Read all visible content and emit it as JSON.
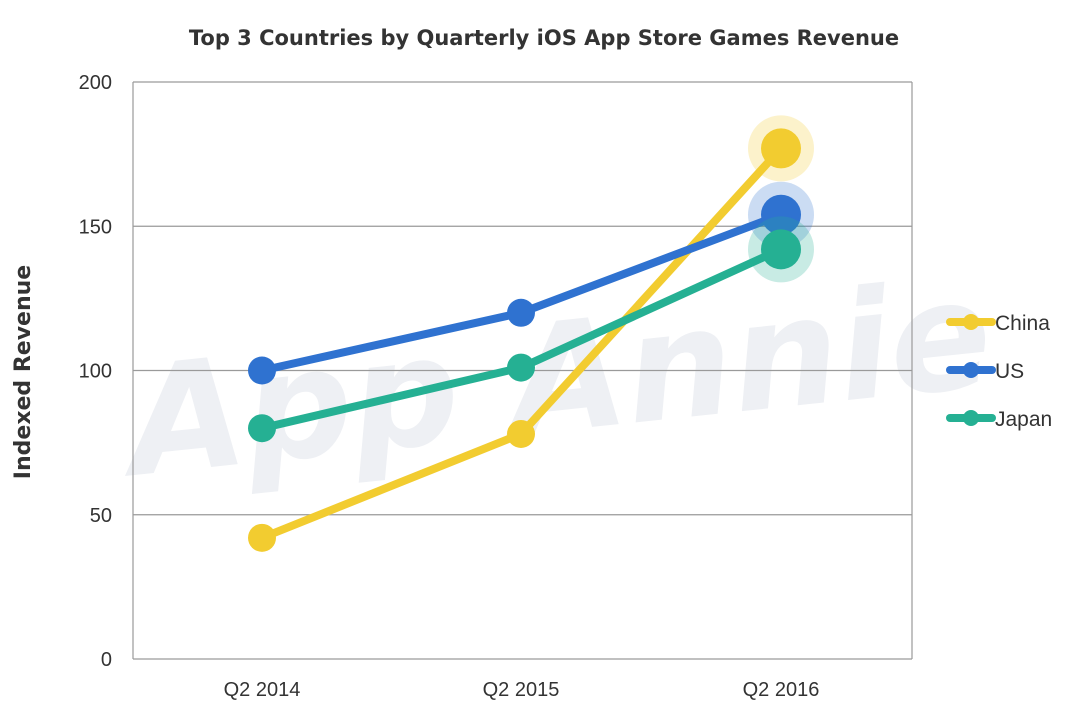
{
  "watermark": "App Annie",
  "chart_data": {
    "type": "line",
    "title": "Top 3 Countries by Quarterly iOS App Store Games Revenue",
    "xlabel": "",
    "ylabel": "Indexed Revenue",
    "categories": [
      "Q2 2014",
      "Q2 2015",
      "Q2 2016"
    ],
    "ylim": [
      0,
      200
    ],
    "yticks": [
      0,
      50,
      100,
      150,
      200
    ],
    "grid": true,
    "legend_position": "right",
    "series": [
      {
        "name": "China",
        "color": "#f2cc30",
        "values": [
          42,
          78,
          177
        ]
      },
      {
        "name": "US",
        "color": "#2f72d0",
        "values": [
          100,
          120,
          154
        ]
      },
      {
        "name": "Japan",
        "color": "#25b093",
        "values": [
          80,
          101,
          142
        ]
      }
    ],
    "highlight_last_point": true
  }
}
